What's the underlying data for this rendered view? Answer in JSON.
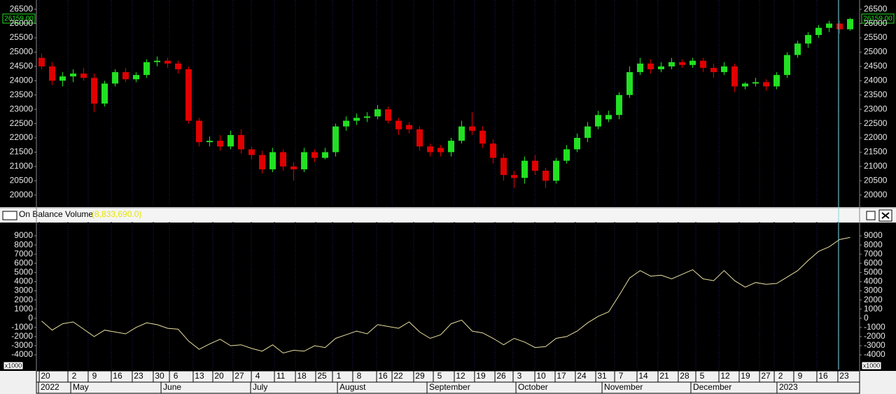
{
  "chart_data": [
    {
      "type": "candlestick",
      "last_label": "26159.00",
      "up_color": "#22e022",
      "down_color": "#e00000",
      "xlim": [
        0,
        78.4
      ],
      "ylim": [
        19650,
        26750
      ],
      "yticks": [
        20000,
        20500,
        21000,
        21500,
        22000,
        22500,
        23000,
        23500,
        24000,
        24500,
        25000,
        25500,
        26000,
        26500
      ],
      "open": [
        24800,
        24500,
        24000,
        24150,
        24250,
        24100,
        23200,
        23900,
        24300,
        24050,
        24200,
        24650,
        24700,
        24600,
        24400,
        22600,
        21850,
        21900,
        21700,
        22100,
        21600,
        21400,
        20900,
        21500,
        21000,
        20900,
        21500,
        21300,
        21500,
        22400,
        22600,
        22700,
        22750,
        23000,
        22600,
        22450,
        22300,
        21700,
        21650,
        21500,
        21900,
        22400,
        22250,
        21800,
        21300,
        20700,
        20600,
        21200,
        20850,
        20500,
        21200,
        21600,
        22000,
        22400,
        22650,
        22800,
        23500,
        24300,
        24600,
        24400,
        24500,
        24650,
        24550,
        24700,
        24450,
        24300,
        24500,
        23800,
        23900,
        23950,
        23800,
        24200,
        24900,
        25300,
        25600,
        25850,
        26000,
        25800
      ],
      "high": [
        24950,
        24650,
        24300,
        24400,
        24450,
        24250,
        24000,
        24400,
        24450,
        24300,
        24750,
        24850,
        24800,
        24700,
        24500,
        22700,
        22050,
        22100,
        22250,
        22300,
        21700,
        21550,
        21650,
        21600,
        21150,
        21650,
        21600,
        21650,
        22500,
        22750,
        22850,
        22900,
        23150,
        23100,
        22700,
        22550,
        22400,
        21800,
        21750,
        22000,
        22600,
        22900,
        22400,
        21950,
        21450,
        20850,
        21350,
        21400,
        20950,
        21300,
        21750,
        22150,
        22550,
        22950,
        22950,
        23600,
        24500,
        24800,
        24750,
        24650,
        24800,
        24750,
        24800,
        24800,
        24600,
        24650,
        24600,
        23950,
        24100,
        24050,
        24300,
        25000,
        25400,
        25700,
        25950,
        26100,
        26100,
        26200
      ],
      "low": [
        24400,
        23850,
        23800,
        23950,
        24000,
        22900,
        23100,
        23800,
        23950,
        23950,
        24100,
        24500,
        24450,
        24250,
        22500,
        21700,
        21700,
        21550,
        21600,
        21450,
        21250,
        20750,
        20800,
        20850,
        20500,
        20800,
        21150,
        21250,
        21350,
        22250,
        22450,
        22550,
        22650,
        22500,
        22100,
        22150,
        21550,
        21350,
        21350,
        21350,
        21800,
        22100,
        21650,
        21100,
        20500,
        20250,
        20400,
        20700,
        20250,
        20400,
        21100,
        21500,
        21850,
        22300,
        22550,
        22650,
        23400,
        24200,
        24250,
        24300,
        24400,
        24450,
        24450,
        24300,
        24100,
        24200,
        23600,
        23700,
        23800,
        23650,
        23700,
        24100,
        24800,
        25150,
        25500,
        25700,
        25650,
        25750
      ],
      "close": [
        24500,
        24000,
        24150,
        24250,
        24100,
        23200,
        23900,
        24300,
        24050,
        24200,
        24650,
        24700,
        24600,
        24400,
        22600,
        21850,
        21900,
        21700,
        22100,
        21600,
        21400,
        20900,
        21500,
        21000,
        20900,
        21500,
        21300,
        21500,
        22400,
        22600,
        22700,
        22750,
        23000,
        22600,
        22300,
        22300,
        21700,
        21500,
        21500,
        21900,
        22400,
        22250,
        21800,
        21300,
        20700,
        20600,
        21200,
        20850,
        20500,
        21200,
        21600,
        22000,
        22400,
        22800,
        22800,
        23500,
        24300,
        24600,
        24400,
        24500,
        24650,
        24550,
        24700,
        24450,
        24300,
        24500,
        23800,
        23900,
        23950,
        23800,
        24200,
        24900,
        25300,
        25600,
        25850,
        26000,
        25800,
        26159
      ]
    },
    {
      "type": "line",
      "title": "On Balance Volume",
      "last_label": "(8,833,690.0)",
      "unit_label": "x1000",
      "color": "#e8e0a0",
      "xlim": [
        0,
        78.4
      ],
      "ylim": [
        -5600,
        10300
      ],
      "yticks": [
        -4000,
        -3000,
        -2000,
        -1000,
        0,
        1000,
        2000,
        3000,
        4000,
        5000,
        6000,
        7000,
        8000,
        9000
      ],
      "values": [
        -300,
        -1300,
        -600,
        -400,
        -1200,
        -2000,
        -1300,
        -1500,
        -1700,
        -1000,
        -500,
        -700,
        -1100,
        -1200,
        -2500,
        -3400,
        -2800,
        -2300,
        -3000,
        -2900,
        -3300,
        -3600,
        -2900,
        -3800,
        -3500,
        -3600,
        -3000,
        -3200,
        -2200,
        -1800,
        -1400,
        -1700,
        -700,
        -900,
        -1100,
        -400,
        -1500,
        -2200,
        -1800,
        -600,
        -200,
        -1400,
        -1600,
        -2200,
        -2900,
        -2200,
        -2600,
        -3200,
        -3100,
        -2200,
        -2000,
        -1400,
        -500,
        200,
        700,
        2500,
        4400,
        5200,
        4600,
        4700,
        4300,
        4800,
        5300,
        4300,
        4100,
        5200,
        4100,
        3400,
        3900,
        3700,
        3800,
        4500,
        5200,
        6300,
        7300,
        7800,
        8600,
        8834
      ],
      "xticks": [
        {
          "value": 0.27,
          "label": "20"
        },
        {
          "value": 3.0,
          "label": "2"
        },
        {
          "value": 4.93,
          "label": "9"
        },
        {
          "value": 7.13,
          "label": "16"
        },
        {
          "value": 9.13,
          "label": "23"
        },
        {
          "value": 11.13,
          "label": "30"
        },
        {
          "value": 12.67,
          "label": "6"
        },
        {
          "value": 14.93,
          "label": "13"
        },
        {
          "value": 16.8,
          "label": "20"
        },
        {
          "value": 18.73,
          "label": "27"
        },
        {
          "value": 20.47,
          "label": "4"
        },
        {
          "value": 22.67,
          "label": "11"
        },
        {
          "value": 24.67,
          "label": "18"
        },
        {
          "value": 26.6,
          "label": "25"
        },
        {
          "value": 28.2,
          "label": "1"
        },
        {
          "value": 30.13,
          "label": "8"
        },
        {
          "value": 32.4,
          "label": "16"
        },
        {
          "value": 33.87,
          "label": "22"
        },
        {
          "value": 35.93,
          "label": "29"
        },
        {
          "value": 37.8,
          "label": "5"
        },
        {
          "value": 39.8,
          "label": "12"
        },
        {
          "value": 41.73,
          "label": "19"
        },
        {
          "value": 43.67,
          "label": "26"
        },
        {
          "value": 45.4,
          "label": "3"
        },
        {
          "value": 47.47,
          "label": "10"
        },
        {
          "value": 49.4,
          "label": "17"
        },
        {
          "value": 51.33,
          "label": "24"
        },
        {
          "value": 53.27,
          "label": "31"
        },
        {
          "value": 55.07,
          "label": "7"
        },
        {
          "value": 57.2,
          "label": "14"
        },
        {
          "value": 59.2,
          "label": "21"
        },
        {
          "value": 61.13,
          "label": "28"
        },
        {
          "value": 62.8,
          "label": "5"
        },
        {
          "value": 65.0,
          "label": "12"
        },
        {
          "value": 66.93,
          "label": "19"
        },
        {
          "value": 68.87,
          "label": "27"
        },
        {
          "value": 70.27,
          "label": "2"
        },
        {
          "value": 72.13,
          "label": "9"
        },
        {
          "value": 74.33,
          "label": "16"
        },
        {
          "value": 76.33,
          "label": "23"
        }
      ],
      "month_ticks": [
        {
          "value": 0.2,
          "label": "2022"
        },
        {
          "value": 3.27,
          "label": "May"
        },
        {
          "value": 11.87,
          "label": "June"
        },
        {
          "value": 20.4,
          "label": "July"
        },
        {
          "value": 28.67,
          "label": "August"
        },
        {
          "value": 37.2,
          "label": "September"
        },
        {
          "value": 45.67,
          "label": "October"
        },
        {
          "value": 53.87,
          "label": "November"
        },
        {
          "value": 62.33,
          "label": "December"
        },
        {
          "value": 70.53,
          "label": "2023"
        }
      ]
    }
  ]
}
